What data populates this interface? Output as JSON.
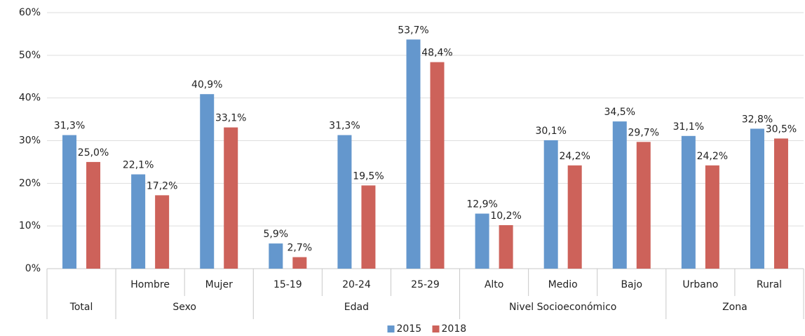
{
  "chart_data": {
    "type": "bar",
    "category_groups": [
      {
        "name": "Total",
        "categories": [
          null
        ]
      },
      {
        "name": "Sexo",
        "categories": [
          "Hombre",
          "Mujer"
        ]
      },
      {
        "name": "Edad",
        "categories": [
          "15-19",
          "20-24",
          "25-29"
        ]
      },
      {
        "name": "Nivel Socioeconómico",
        "categories": [
          "Alto",
          "Medio",
          "Bajo"
        ]
      },
      {
        "name": "Zona",
        "categories": [
          "Urbano",
          "Rural"
        ]
      }
    ],
    "series": [
      {
        "name": "2015",
        "color": "#6497cd",
        "values": [
          31.3,
          22.1,
          40.9,
          5.9,
          31.3,
          53.7,
          12.9,
          30.1,
          34.5,
          31.1,
          32.8
        ],
        "value_labels": [
          "31,3%",
          "22,1%",
          "40,9%",
          "5,9%",
          "31,3%",
          "53,7%",
          "12,9%",
          "30,1%",
          "34,5%",
          "31,1%",
          "32,8%"
        ]
      },
      {
        "name": "2018",
        "color": "#cd625a",
        "values": [
          25.0,
          17.2,
          33.1,
          2.7,
          19.5,
          48.4,
          10.2,
          24.2,
          29.7,
          24.2,
          30.5
        ],
        "value_labels": [
          "25,0%",
          "17,2%",
          "33,1%",
          "2,7%",
          "19,5%",
          "48,4%",
          "10,2%",
          "24,2%",
          "29,7%",
          "24,2%",
          "30,5%"
        ]
      }
    ],
    "ylim": [
      0,
      60
    ],
    "yticks": [
      {
        "value": 0,
        "label": "0%"
      },
      {
        "value": 10,
        "label": "10%"
      },
      {
        "value": 20,
        "label": "20%"
      },
      {
        "value": 30,
        "label": "30%"
      },
      {
        "value": 40,
        "label": "40%"
      },
      {
        "value": 50,
        "label": "50%"
      },
      {
        "value": 60,
        "label": "60%"
      }
    ],
    "grid": true,
    "legend": "bottom"
  }
}
